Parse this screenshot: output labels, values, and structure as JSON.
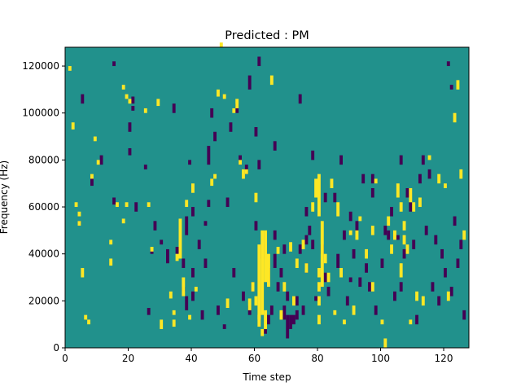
{
  "chart_data": {
    "type": "heatmap",
    "title": "Predicted : PM",
    "xlabel": "Time step",
    "ylabel": "Frequency (Hz)",
    "xlim": [
      0,
      128
    ],
    "ylim": [
      0,
      128000
    ],
    "xticks": [
      0,
      20,
      40,
      60,
      80,
      100,
      120
    ],
    "yticks": [
      0,
      20000,
      40000,
      60000,
      80000,
      100000,
      120000
    ],
    "grid": false,
    "colormap": "viridis",
    "colors": {
      "background": "#21918c",
      "high": "#fde725",
      "low": "#440154"
    },
    "n_time_steps": 128,
    "n_freq_bins": 128,
    "bin_height_hz": 1000,
    "cells_note_values": "high = yellow, low = dark purple, all others background",
    "high_cells": [
      [
        1,
        118,
        120
      ],
      [
        2,
        93,
        96
      ],
      [
        3,
        60,
        62
      ],
      [
        4,
        56,
        58
      ],
      [
        4,
        52,
        54
      ],
      [
        5,
        30,
        34
      ],
      [
        6,
        12,
        14
      ],
      [
        7,
        10,
        12
      ],
      [
        8,
        72,
        74
      ],
      [
        9,
        88,
        90
      ],
      [
        10,
        78,
        80
      ],
      [
        14,
        44,
        46
      ],
      [
        14,
        35,
        38
      ],
      [
        16,
        60,
        62
      ],
      [
        18,
        110,
        112
      ],
      [
        18,
        53,
        55
      ],
      [
        19,
        106,
        108
      ],
      [
        19,
        60,
        62
      ],
      [
        20,
        104,
        106
      ],
      [
        25,
        100,
        102
      ],
      [
        26,
        60,
        62
      ],
      [
        27,
        41,
        43
      ],
      [
        29,
        103,
        106
      ],
      [
        30,
        8,
        12
      ],
      [
        33,
        21,
        24
      ],
      [
        34,
        14,
        16
      ],
      [
        34,
        9,
        12
      ],
      [
        35,
        37,
        40
      ],
      [
        36,
        38,
        55
      ],
      [
        37,
        22,
        30
      ],
      [
        38,
        60,
        63
      ],
      [
        39,
        12,
        14
      ],
      [
        40,
        66,
        70
      ],
      [
        41,
        24,
        26
      ],
      [
        46,
        69,
        72
      ],
      [
        47,
        72,
        74
      ],
      [
        48,
        107,
        110
      ],
      [
        49,
        128,
        130
      ],
      [
        50,
        106,
        108
      ],
      [
        51,
        17,
        21
      ],
      [
        53,
        100,
        102
      ],
      [
        54,
        102,
        106
      ],
      [
        55,
        78,
        80
      ],
      [
        56,
        72,
        76
      ],
      [
        57,
        74,
        76
      ],
      [
        58,
        16,
        21
      ],
      [
        59,
        24,
        28
      ],
      [
        60,
        18,
        22
      ],
      [
        60,
        62,
        66
      ],
      [
        61,
        9,
        14
      ],
      [
        61,
        12,
        44
      ],
      [
        62,
        5,
        8
      ],
      [
        62,
        14,
        50
      ],
      [
        63,
        8,
        16
      ],
      [
        63,
        28,
        50
      ],
      [
        64,
        26,
        40
      ],
      [
        65,
        112,
        116
      ],
      [
        67,
        40,
        43
      ],
      [
        68,
        12,
        16
      ],
      [
        69,
        24,
        28
      ],
      [
        71,
        41,
        45
      ],
      [
        72,
        18,
        22
      ],
      [
        73,
        34,
        38
      ],
      [
        75,
        42,
        46
      ],
      [
        76,
        32,
        36
      ],
      [
        78,
        58,
        62
      ],
      [
        79,
        64,
        72
      ],
      [
        80,
        56,
        74
      ],
      [
        80,
        30,
        34
      ],
      [
        80,
        24,
        28
      ],
      [
        80,
        18,
        22
      ],
      [
        80,
        10,
        14
      ],
      [
        81,
        26,
        54
      ],
      [
        82,
        36,
        40
      ],
      [
        83,
        28,
        32
      ],
      [
        84,
        68,
        72
      ],
      [
        85,
        14,
        16
      ],
      [
        86,
        56,
        62
      ],
      [
        87,
        30,
        34
      ],
      [
        88,
        10,
        12
      ],
      [
        90,
        48,
        50
      ],
      [
        91,
        14,
        18
      ],
      [
        92,
        46,
        50
      ],
      [
        93,
        54,
        56
      ],
      [
        95,
        38,
        42
      ],
      [
        97,
        24,
        28
      ],
      [
        97,
        48,
        52
      ],
      [
        98,
        70,
        72
      ],
      [
        100,
        10,
        12
      ],
      [
        101,
        0,
        4
      ],
      [
        102,
        52,
        56
      ],
      [
        103,
        40,
        44
      ],
      [
        104,
        46,
        50
      ],
      [
        105,
        64,
        70
      ],
      [
        106,
        30,
        36
      ],
      [
        106,
        58,
        62
      ],
      [
        107,
        44,
        48
      ],
      [
        107,
        50,
        54
      ],
      [
        108,
        40,
        44
      ],
      [
        109,
        10,
        12
      ],
      [
        109,
        62,
        68
      ],
      [
        110,
        58,
        62
      ],
      [
        111,
        20,
        24
      ],
      [
        112,
        60,
        64
      ],
      [
        113,
        18,
        22
      ],
      [
        115,
        80,
        82
      ],
      [
        118,
        70,
        74
      ],
      [
        120,
        68,
        70
      ],
      [
        121,
        20,
        24
      ],
      [
        123,
        96,
        100
      ],
      [
        124,
        110,
        114
      ],
      [
        125,
        72,
        76
      ],
      [
        126,
        46,
        50
      ]
    ],
    "low_cells": [
      [
        4,
        52,
        54
      ],
      [
        5,
        104,
        108
      ],
      [
        8,
        69,
        72
      ],
      [
        11,
        78,
        82
      ],
      [
        15,
        120,
        122
      ],
      [
        15,
        61,
        64
      ],
      [
        20,
        92,
        96
      ],
      [
        20,
        82,
        85
      ],
      [
        21,
        104,
        107
      ],
      [
        21,
        101,
        103
      ],
      [
        22,
        58,
        62
      ],
      [
        25,
        76,
        78
      ],
      [
        26,
        14,
        17
      ],
      [
        27,
        40,
        42
      ],
      [
        28,
        50,
        54
      ],
      [
        30,
        44,
        46
      ],
      [
        32,
        36,
        42
      ],
      [
        34,
        100,
        104
      ],
      [
        35,
        40,
        43
      ],
      [
        37,
        34,
        38
      ],
      [
        37,
        24,
        26
      ],
      [
        38,
        16,
        22
      ],
      [
        38,
        48,
        56
      ],
      [
        39,
        78,
        80
      ],
      [
        40,
        20,
        24
      ],
      [
        40,
        30,
        34
      ],
      [
        40,
        56,
        60
      ],
      [
        42,
        42,
        46
      ],
      [
        43,
        12,
        16
      ],
      [
        44,
        52,
        54
      ],
      [
        44,
        34,
        38
      ],
      [
        45,
        60,
        63
      ],
      [
        45,
        78,
        86
      ],
      [
        46,
        98,
        102
      ],
      [
        47,
        88,
        92
      ],
      [
        48,
        14,
        18
      ],
      [
        50,
        8,
        10
      ],
      [
        51,
        60,
        64
      ],
      [
        52,
        92,
        96
      ],
      [
        53,
        30,
        34
      ],
      [
        54,
        100,
        104
      ],
      [
        55,
        78,
        82
      ],
      [
        56,
        20,
        24
      ],
      [
        57,
        74,
        78
      ],
      [
        58,
        14,
        18
      ],
      [
        58,
        110,
        116
      ],
      [
        59,
        24,
        28
      ],
      [
        60,
        50,
        54
      ],
      [
        60,
        90,
        94
      ],
      [
        61,
        76,
        80
      ],
      [
        61,
        120,
        124
      ],
      [
        62,
        38,
        44
      ],
      [
        63,
        6,
        8
      ],
      [
        64,
        10,
        14
      ],
      [
        64,
        28,
        34
      ],
      [
        65,
        14,
        18
      ],
      [
        66,
        34,
        40
      ],
      [
        66,
        46,
        50
      ],
      [
        66,
        84,
        88
      ],
      [
        67,
        24,
        28
      ],
      [
        68,
        30,
        34
      ],
      [
        69,
        40,
        44
      ],
      [
        69,
        12,
        18
      ],
      [
        70,
        20,
        24
      ],
      [
        70,
        4,
        14
      ],
      [
        71,
        8,
        14
      ],
      [
        72,
        10,
        14
      ],
      [
        73,
        12,
        16
      ],
      [
        73,
        18,
        22
      ],
      [
        74,
        40,
        44
      ],
      [
        74,
        104,
        108
      ],
      [
        75,
        14,
        18
      ],
      [
        76,
        32,
        36
      ],
      [
        76,
        44,
        48
      ],
      [
        76,
        56,
        60
      ],
      [
        77,
        48,
        52
      ],
      [
        78,
        42,
        46
      ],
      [
        78,
        80,
        84
      ],
      [
        79,
        20,
        22
      ],
      [
        81,
        40,
        44
      ],
      [
        82,
        28,
        32
      ],
      [
        82,
        62,
        66
      ],
      [
        83,
        22,
        26
      ],
      [
        85,
        62,
        66
      ],
      [
        86,
        34,
        40
      ],
      [
        87,
        78,
        82
      ],
      [
        88,
        46,
        50
      ],
      [
        89,
        18,
        22
      ],
      [
        90,
        54,
        58
      ],
      [
        90,
        28,
        30
      ],
      [
        91,
        38,
        42
      ],
      [
        92,
        50,
        54
      ],
      [
        93,
        26,
        30
      ],
      [
        94,
        70,
        74
      ],
      [
        95,
        32,
        36
      ],
      [
        96,
        24,
        28
      ],
      [
        97,
        70,
        74
      ],
      [
        97,
        64,
        68
      ],
      [
        98,
        14,
        18
      ],
      [
        100,
        34,
        38
      ],
      [
        101,
        48,
        52
      ],
      [
        102,
        46,
        50
      ],
      [
        103,
        56,
        60
      ],
      [
        104,
        20,
        24
      ],
      [
        105,
        46,
        48
      ],
      [
        106,
        78,
        82
      ],
      [
        106,
        24,
        28
      ],
      [
        107,
        38,
        42
      ],
      [
        108,
        64,
        68
      ],
      [
        109,
        58,
        62
      ],
      [
        110,
        42,
        46
      ],
      [
        111,
        10,
        14
      ],
      [
        112,
        70,
        74
      ],
      [
        113,
        78,
        82
      ],
      [
        114,
        48,
        52
      ],
      [
        115,
        72,
        76
      ],
      [
        116,
        24,
        28
      ],
      [
        117,
        44,
        48
      ],
      [
        118,
        18,
        22
      ],
      [
        119,
        38,
        42
      ],
      [
        120,
        30,
        34
      ],
      [
        121,
        120,
        122
      ],
      [
        122,
        22,
        26
      ],
      [
        122,
        110,
        112
      ],
      [
        123,
        52,
        56
      ],
      [
        124,
        34,
        38
      ],
      [
        125,
        42,
        46
      ],
      [
        126,
        12,
        16
      ]
    ]
  }
}
